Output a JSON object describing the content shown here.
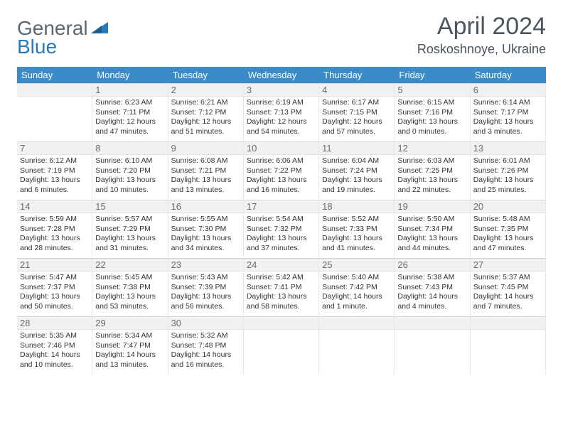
{
  "brand": {
    "part1": "General",
    "part2": "Blue"
  },
  "title": {
    "month": "April 2024",
    "location": "Roskoshnoye, Ukraine"
  },
  "colors": {
    "header_bg": "#3b8bc9",
    "header_text": "#ffffff",
    "band_bg": "#f1f1f1",
    "text": "#333333",
    "title_text": "#4a5560",
    "logo_gray": "#5a6670",
    "logo_blue": "#2779bd"
  },
  "day_headers": [
    "Sunday",
    "Monday",
    "Tuesday",
    "Wednesday",
    "Thursday",
    "Friday",
    "Saturday"
  ],
  "leading_blanks": 1,
  "days": [
    {
      "n": "1",
      "sunrise": "Sunrise: 6:23 AM",
      "sunset": "Sunset: 7:11 PM",
      "day1": "Daylight: 12 hours",
      "day2": "and 47 minutes."
    },
    {
      "n": "2",
      "sunrise": "Sunrise: 6:21 AM",
      "sunset": "Sunset: 7:12 PM",
      "day1": "Daylight: 12 hours",
      "day2": "and 51 minutes."
    },
    {
      "n": "3",
      "sunrise": "Sunrise: 6:19 AM",
      "sunset": "Sunset: 7:13 PM",
      "day1": "Daylight: 12 hours",
      "day2": "and 54 minutes."
    },
    {
      "n": "4",
      "sunrise": "Sunrise: 6:17 AM",
      "sunset": "Sunset: 7:15 PM",
      "day1": "Daylight: 12 hours",
      "day2": "and 57 minutes."
    },
    {
      "n": "5",
      "sunrise": "Sunrise: 6:15 AM",
      "sunset": "Sunset: 7:16 PM",
      "day1": "Daylight: 13 hours",
      "day2": "and 0 minutes."
    },
    {
      "n": "6",
      "sunrise": "Sunrise: 6:14 AM",
      "sunset": "Sunset: 7:17 PM",
      "day1": "Daylight: 13 hours",
      "day2": "and 3 minutes."
    },
    {
      "n": "7",
      "sunrise": "Sunrise: 6:12 AM",
      "sunset": "Sunset: 7:19 PM",
      "day1": "Daylight: 13 hours",
      "day2": "and 6 minutes."
    },
    {
      "n": "8",
      "sunrise": "Sunrise: 6:10 AM",
      "sunset": "Sunset: 7:20 PM",
      "day1": "Daylight: 13 hours",
      "day2": "and 10 minutes."
    },
    {
      "n": "9",
      "sunrise": "Sunrise: 6:08 AM",
      "sunset": "Sunset: 7:21 PM",
      "day1": "Daylight: 13 hours",
      "day2": "and 13 minutes."
    },
    {
      "n": "10",
      "sunrise": "Sunrise: 6:06 AM",
      "sunset": "Sunset: 7:22 PM",
      "day1": "Daylight: 13 hours",
      "day2": "and 16 minutes."
    },
    {
      "n": "11",
      "sunrise": "Sunrise: 6:04 AM",
      "sunset": "Sunset: 7:24 PM",
      "day1": "Daylight: 13 hours",
      "day2": "and 19 minutes."
    },
    {
      "n": "12",
      "sunrise": "Sunrise: 6:03 AM",
      "sunset": "Sunset: 7:25 PM",
      "day1": "Daylight: 13 hours",
      "day2": "and 22 minutes."
    },
    {
      "n": "13",
      "sunrise": "Sunrise: 6:01 AM",
      "sunset": "Sunset: 7:26 PM",
      "day1": "Daylight: 13 hours",
      "day2": "and 25 minutes."
    },
    {
      "n": "14",
      "sunrise": "Sunrise: 5:59 AM",
      "sunset": "Sunset: 7:28 PM",
      "day1": "Daylight: 13 hours",
      "day2": "and 28 minutes."
    },
    {
      "n": "15",
      "sunrise": "Sunrise: 5:57 AM",
      "sunset": "Sunset: 7:29 PM",
      "day1": "Daylight: 13 hours",
      "day2": "and 31 minutes."
    },
    {
      "n": "16",
      "sunrise": "Sunrise: 5:55 AM",
      "sunset": "Sunset: 7:30 PM",
      "day1": "Daylight: 13 hours",
      "day2": "and 34 minutes."
    },
    {
      "n": "17",
      "sunrise": "Sunrise: 5:54 AM",
      "sunset": "Sunset: 7:32 PM",
      "day1": "Daylight: 13 hours",
      "day2": "and 37 minutes."
    },
    {
      "n": "18",
      "sunrise": "Sunrise: 5:52 AM",
      "sunset": "Sunset: 7:33 PM",
      "day1": "Daylight: 13 hours",
      "day2": "and 41 minutes."
    },
    {
      "n": "19",
      "sunrise": "Sunrise: 5:50 AM",
      "sunset": "Sunset: 7:34 PM",
      "day1": "Daylight: 13 hours",
      "day2": "and 44 minutes."
    },
    {
      "n": "20",
      "sunrise": "Sunrise: 5:48 AM",
      "sunset": "Sunset: 7:35 PM",
      "day1": "Daylight: 13 hours",
      "day2": "and 47 minutes."
    },
    {
      "n": "21",
      "sunrise": "Sunrise: 5:47 AM",
      "sunset": "Sunset: 7:37 PM",
      "day1": "Daylight: 13 hours",
      "day2": "and 50 minutes."
    },
    {
      "n": "22",
      "sunrise": "Sunrise: 5:45 AM",
      "sunset": "Sunset: 7:38 PM",
      "day1": "Daylight: 13 hours",
      "day2": "and 53 minutes."
    },
    {
      "n": "23",
      "sunrise": "Sunrise: 5:43 AM",
      "sunset": "Sunset: 7:39 PM",
      "day1": "Daylight: 13 hours",
      "day2": "and 56 minutes."
    },
    {
      "n": "24",
      "sunrise": "Sunrise: 5:42 AM",
      "sunset": "Sunset: 7:41 PM",
      "day1": "Daylight: 13 hours",
      "day2": "and 58 minutes."
    },
    {
      "n": "25",
      "sunrise": "Sunrise: 5:40 AM",
      "sunset": "Sunset: 7:42 PM",
      "day1": "Daylight: 14 hours",
      "day2": "and 1 minute."
    },
    {
      "n": "26",
      "sunrise": "Sunrise: 5:38 AM",
      "sunset": "Sunset: 7:43 PM",
      "day1": "Daylight: 14 hours",
      "day2": "and 4 minutes."
    },
    {
      "n": "27",
      "sunrise": "Sunrise: 5:37 AM",
      "sunset": "Sunset: 7:45 PM",
      "day1": "Daylight: 14 hours",
      "day2": "and 7 minutes."
    },
    {
      "n": "28",
      "sunrise": "Sunrise: 5:35 AM",
      "sunset": "Sunset: 7:46 PM",
      "day1": "Daylight: 14 hours",
      "day2": "and 10 minutes."
    },
    {
      "n": "29",
      "sunrise": "Sunrise: 5:34 AM",
      "sunset": "Sunset: 7:47 PM",
      "day1": "Daylight: 14 hours",
      "day2": "and 13 minutes."
    },
    {
      "n": "30",
      "sunrise": "Sunrise: 5:32 AM",
      "sunset": "Sunset: 7:48 PM",
      "day1": "Daylight: 14 hours",
      "day2": "and 16 minutes."
    }
  ],
  "trailing_blanks": 4
}
